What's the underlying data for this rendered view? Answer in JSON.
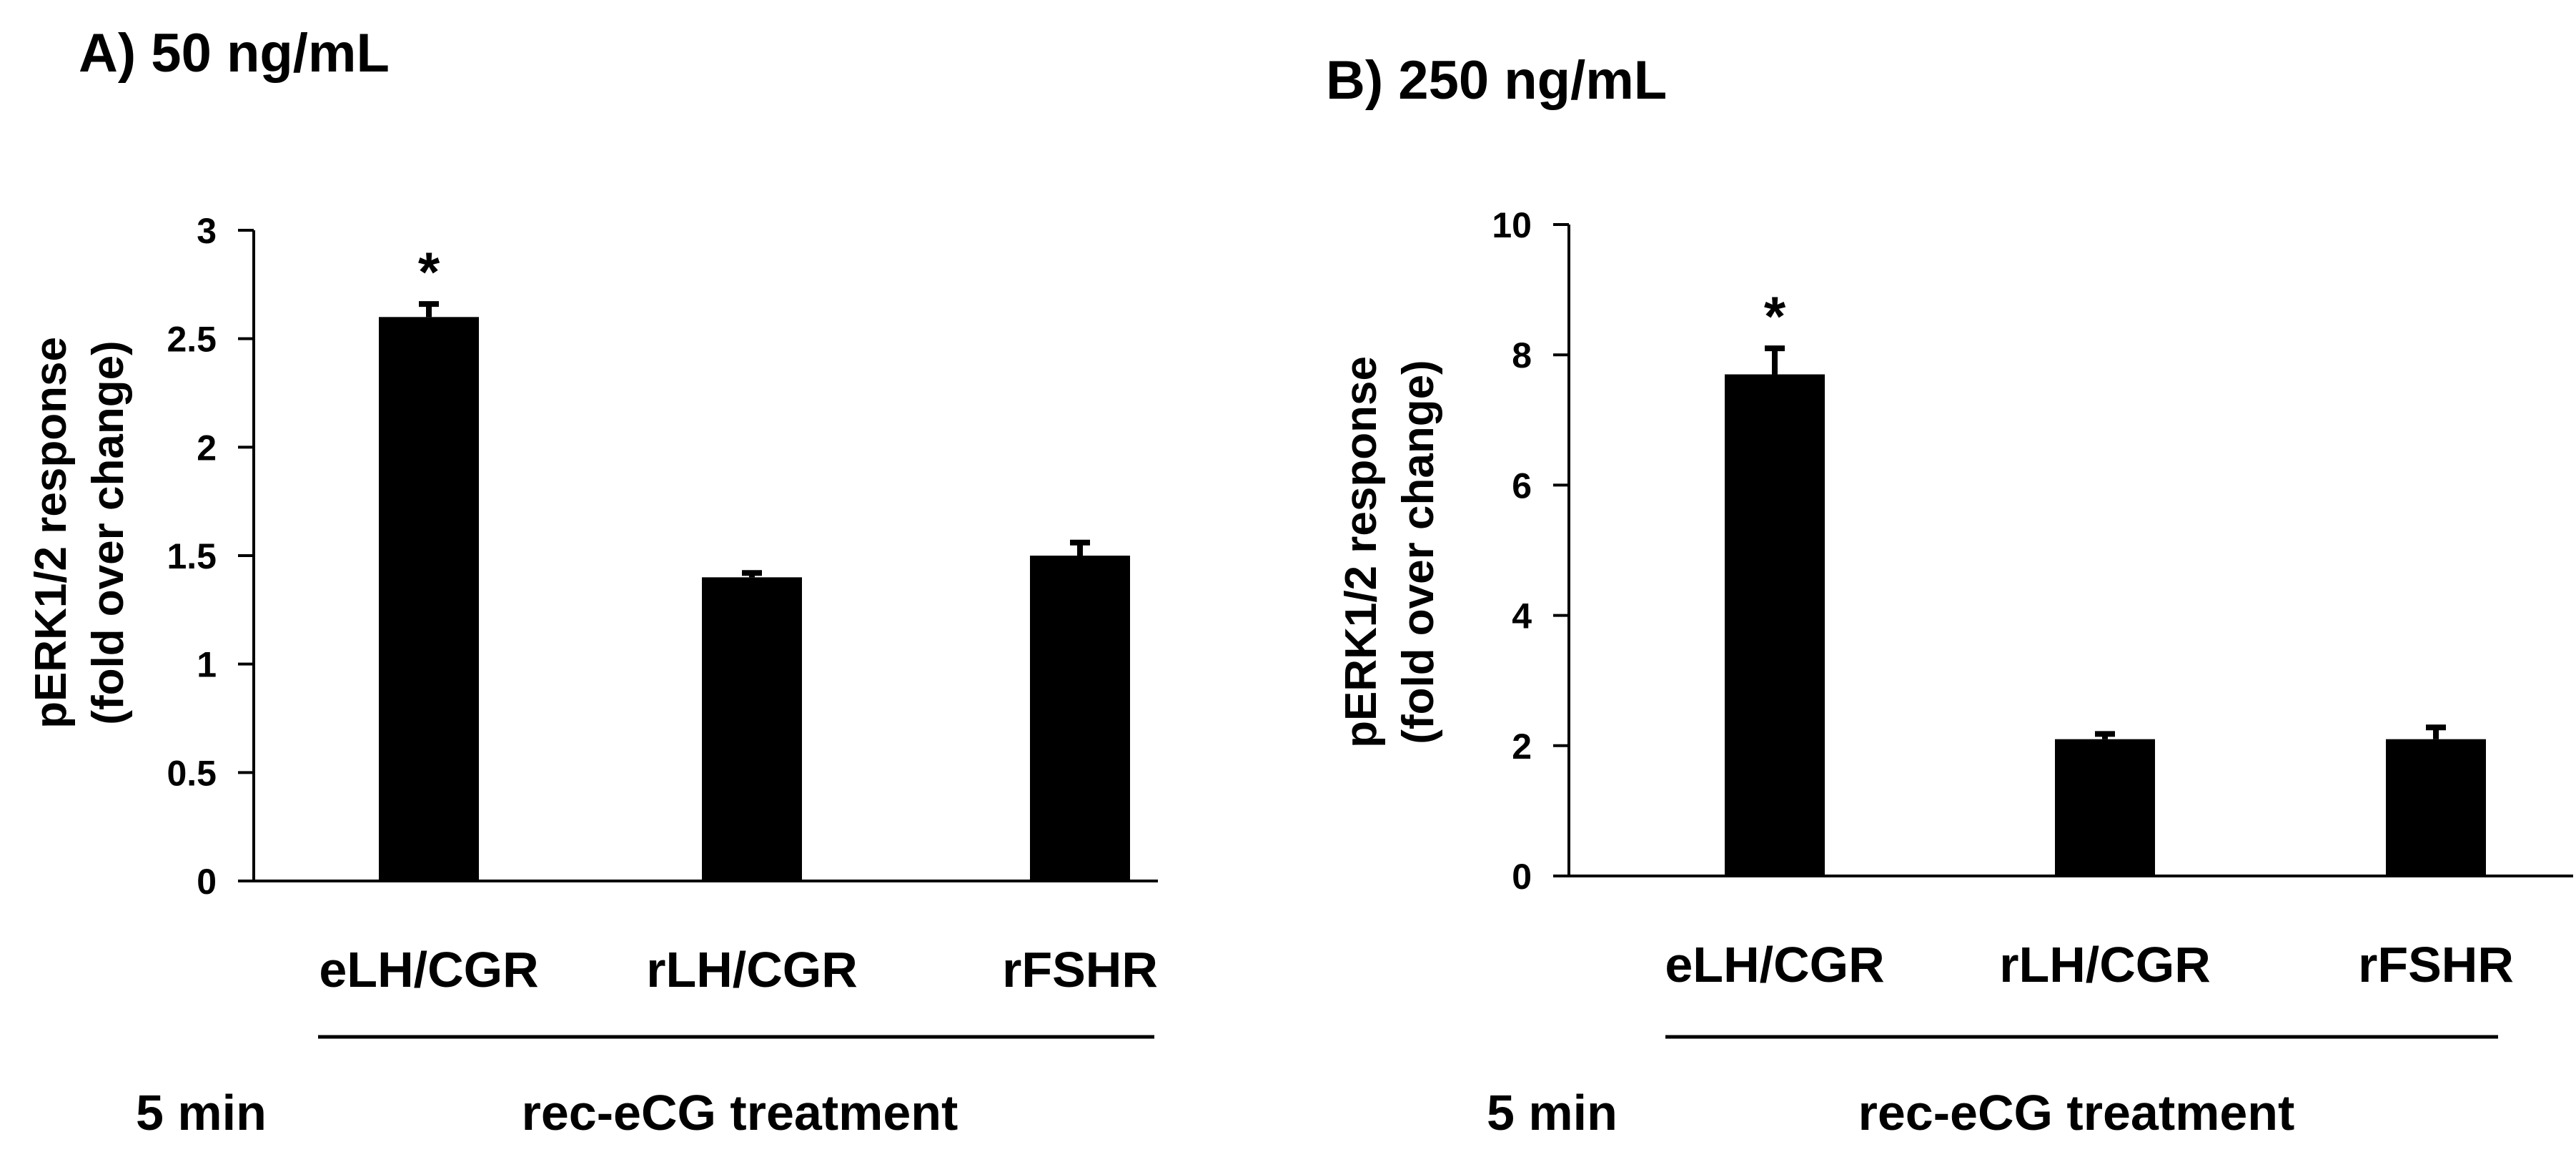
{
  "colors": {
    "bar": "#000000",
    "axis": "#000000",
    "background": "#ffffff"
  },
  "chart_data": [
    {
      "type": "bar",
      "title": "A) 50 ng/mL",
      "ylabel_line1": "pERK1/2 response",
      "ylabel_line2": "(fold over change)",
      "categories": [
        "eLH/CGR",
        "rLH/CGR",
        "rFSHR"
      ],
      "values": [
        2.6,
        1.4,
        1.5
      ],
      "errors": [
        0.06,
        0.02,
        0.06
      ],
      "significance": [
        "*",
        "",
        ""
      ],
      "ylim": [
        0,
        3
      ],
      "yticks": [
        0,
        0.5,
        1,
        1.5,
        2,
        2.5,
        3
      ],
      "yticklabels": [
        "0",
        "0.5",
        "1",
        "1.5",
        "2",
        "2.5",
        "3"
      ],
      "time_label": "5 min",
      "group_label": "rec-eCG treatment",
      "grid": false
    },
    {
      "type": "bar",
      "title": "B) 250 ng/mL",
      "ylabel_line1": "pERK1/2 response",
      "ylabel_line2": "(fold over change)",
      "categories": [
        "eLH/CGR",
        "rLH/CGR",
        "rFSHR"
      ],
      "values": [
        7.7,
        2.1,
        2.1
      ],
      "errors": [
        0.4,
        0.08,
        0.18
      ],
      "significance": [
        "*",
        "",
        ""
      ],
      "ylim": [
        0,
        10
      ],
      "yticks": [
        0,
        2,
        4,
        6,
        8,
        10
      ],
      "yticklabels": [
        "0",
        "2",
        "4",
        "6",
        "8",
        "10"
      ],
      "time_label": "5 min",
      "group_label": "rec-eCG treatment",
      "grid": false
    }
  ]
}
